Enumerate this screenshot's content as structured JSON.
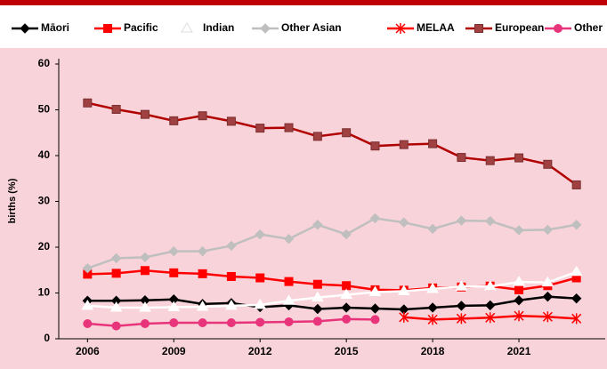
{
  "chart_data": {
    "type": "line",
    "y_label": "births (%)",
    "x": [
      2006,
      2007,
      2008,
      2009,
      2010,
      2011,
      2012,
      2013,
      2014,
      2015,
      2016,
      2017,
      2018,
      2019,
      2020,
      2021,
      2022,
      2023
    ],
    "xlim": [
      2005,
      2024
    ],
    "xticks": [
      2006,
      2009,
      2012,
      2015,
      2018,
      2021
    ],
    "ylim": [
      0,
      60
    ],
    "yticks": [
      0,
      10,
      20,
      30,
      40,
      50,
      60
    ],
    "legend": "top",
    "series": [
      {
        "name": "Māori",
        "color": "#000000",
        "marker": "diamond",
        "values": [
          8.3,
          8.3,
          8.4,
          8.6,
          7.6,
          7.8,
          6.9,
          7.3,
          6.5,
          6.8,
          6.6,
          6.4,
          6.8,
          7.2,
          7.3,
          8.4,
          9.2,
          8.8
        ]
      },
      {
        "name": "Pacific",
        "color": "#ff0000",
        "marker": "square",
        "values": [
          14.1,
          14.3,
          14.9,
          14.4,
          14.2,
          13.6,
          13.3,
          12.5,
          11.9,
          11.6,
          10.7,
          10.6,
          11.1,
          11.3,
          11.5,
          10.7,
          11.6,
          13.3
        ]
      },
      {
        "name": "Indian",
        "color": "#ffffff",
        "marker": "triangle",
        "values": [
          7.2,
          6.8,
          6.8,
          6.9,
          7.0,
          7.2,
          7.4,
          8.3,
          9.0,
          9.6,
          10.2,
          10.4,
          10.9,
          11.4,
          11.4,
          12.4,
          12.3,
          14.6
        ]
      },
      {
        "name": "Other Asian",
        "color": "#bfbfbf",
        "marker": "diamond",
        "values": [
          15.4,
          17.6,
          17.8,
          19.1,
          19.1,
          20.3,
          22.8,
          21.8,
          24.9,
          22.8,
          26.3,
          25.4,
          24.0,
          25.8,
          25.7,
          23.7,
          23.8,
          24.9
        ]
      },
      {
        "name": "MELAA",
        "color": "#ff0000",
        "marker": "star",
        "values": [
          null,
          null,
          null,
          null,
          null,
          null,
          null,
          null,
          null,
          null,
          null,
          4.7,
          4.2,
          4.4,
          4.6,
          5.0,
          4.8,
          4.4
        ]
      },
      {
        "name": "European",
        "color": "#b00000",
        "marker": "square",
        "values": [
          51.5,
          50.1,
          49.0,
          47.6,
          48.7,
          47.5,
          46.0,
          46.1,
          44.2,
          45.0,
          42.1,
          42.4,
          42.6,
          39.6,
          38.9,
          39.5,
          38.1,
          33.6
        ]
      },
      {
        "name": "Other",
        "color": "#e8347a",
        "marker": "circle",
        "values": [
          3.3,
          2.8,
          3.3,
          3.5,
          3.5,
          3.5,
          3.6,
          3.7,
          3.8,
          4.3,
          4.2,
          null,
          null,
          null,
          null,
          null,
          null,
          null
        ]
      }
    ]
  }
}
